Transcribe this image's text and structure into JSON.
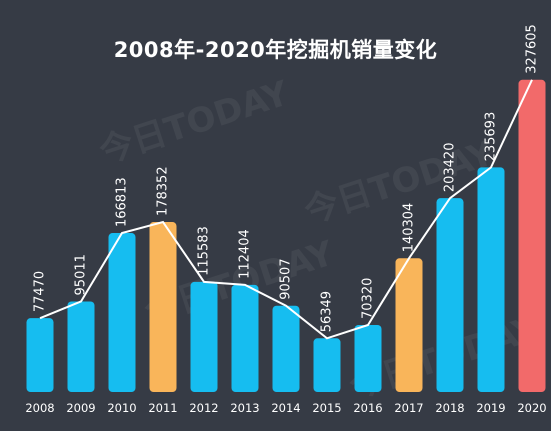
{
  "title": "2008年-2020年挖掘机销量变化",
  "watermark_text": "今日TODAY",
  "colors": {
    "background": "#363b45",
    "bar_default": "#16bdf0",
    "bar_highlight": "#f9b55a",
    "bar_peak": "#f26a6a",
    "line": "#ffffff",
    "text": "#ffffff"
  },
  "chart_data": {
    "type": "bar",
    "title": "2008年-2020年挖掘机销量变化",
    "xlabel": "",
    "ylabel": "",
    "categories": [
      "2008",
      "2009",
      "2010",
      "2011",
      "2012",
      "2013",
      "2014",
      "2015",
      "2016",
      "2017",
      "2018",
      "2019",
      "2020"
    ],
    "values": [
      77470,
      95011,
      166813,
      178352,
      115583,
      112404,
      90507,
      56349,
      70320,
      140304,
      203420,
      235693,
      327605
    ],
    "bar_colors": [
      "default",
      "default",
      "default",
      "highlight",
      "default",
      "default",
      "default",
      "default",
      "default",
      "highlight",
      "default",
      "default",
      "peak"
    ],
    "ylim": [
      0,
      340000
    ],
    "overlay_line": true,
    "grid": false,
    "legend": "none"
  }
}
